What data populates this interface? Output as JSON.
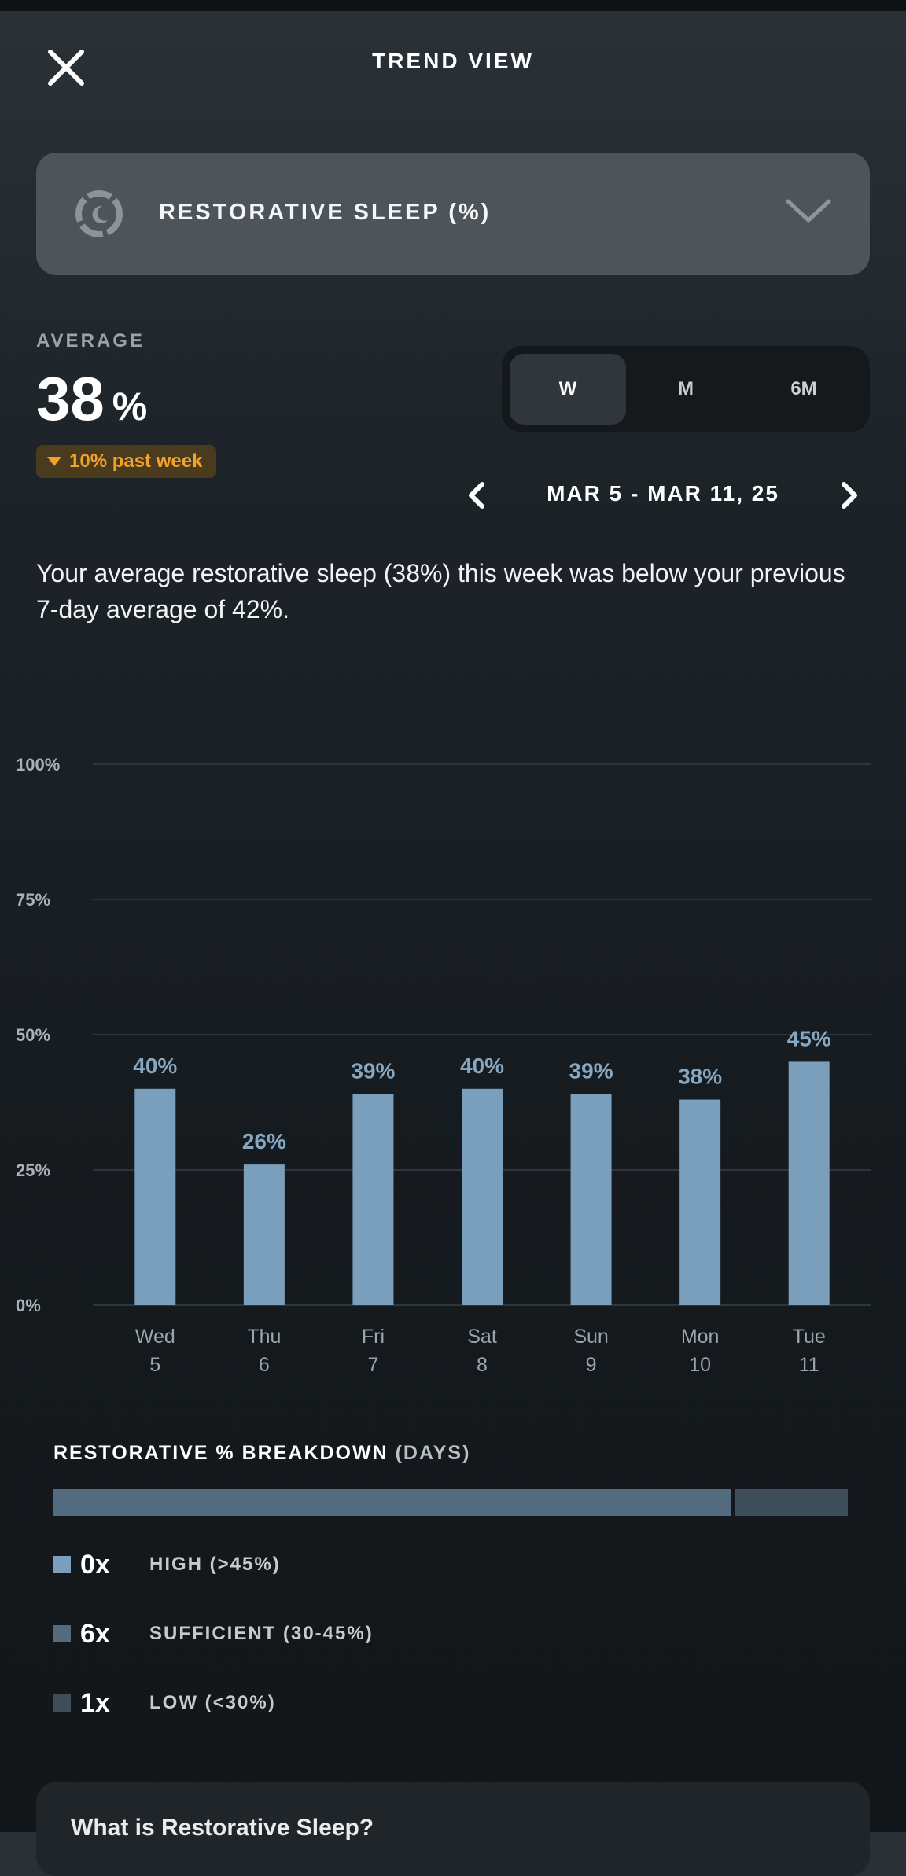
{
  "header": {
    "title": "TREND VIEW",
    "close_icon": "close-icon"
  },
  "metric_select": {
    "label": "RESTORATIVE SLEEP (%)",
    "icon": "sleep-moon-icon",
    "chevron": "chevron-down-icon"
  },
  "average": {
    "label": "AVERAGE",
    "value": "38",
    "unit": "%",
    "trend_text": "10% past week",
    "trend_color": "#f2a229"
  },
  "range_toggle": {
    "options": [
      "W",
      "M",
      "6M"
    ],
    "selected": "W"
  },
  "date_nav": {
    "label": "MAR 5 - MAR 11, 25"
  },
  "summary": "Your average restorative sleep (38%) this week was below your previous 7-day average of 42%.",
  "chart_data": {
    "type": "bar",
    "categories": [
      "Wed 5",
      "Thu 6",
      "Fri 7",
      "Sat 8",
      "Sun 9",
      "Mon 10",
      "Tue 11"
    ],
    "day_names": [
      "Wed",
      "Thu",
      "Fri",
      "Sat",
      "Sun",
      "Mon",
      "Tue"
    ],
    "day_numbers": [
      "5",
      "6",
      "7",
      "8",
      "9",
      "10",
      "11"
    ],
    "values": [
      40,
      26,
      39,
      40,
      39,
      38,
      45
    ],
    "value_labels": [
      "40%",
      "26%",
      "39%",
      "40%",
      "39%",
      "38%",
      "45%"
    ],
    "ylim": [
      0,
      100
    ],
    "yticks": [
      0,
      25,
      50,
      75,
      100
    ],
    "ytick_labels": [
      "0%",
      "25%",
      "50%",
      "75%",
      "100%"
    ],
    "grid": true,
    "bar_color": "#7a9fbc",
    "label_color": "#86a7c1"
  },
  "breakdown": {
    "title": "RESTORATIVE % BREAKDOWN",
    "title_suffix": "(DAYS)",
    "segments": [
      {
        "count": "0x",
        "days": 0,
        "label": "HIGH (>45%)",
        "color": "#7a9fbc"
      },
      {
        "count": "6x",
        "days": 6,
        "label": "SUFFICIENT (30-45%)",
        "color": "#536b7e"
      },
      {
        "count": "1x",
        "days": 1,
        "label": "LOW (<30%)",
        "color": "#3d4d59"
      }
    ]
  },
  "info_card": {
    "title": "What is Restorative Sleep?"
  }
}
